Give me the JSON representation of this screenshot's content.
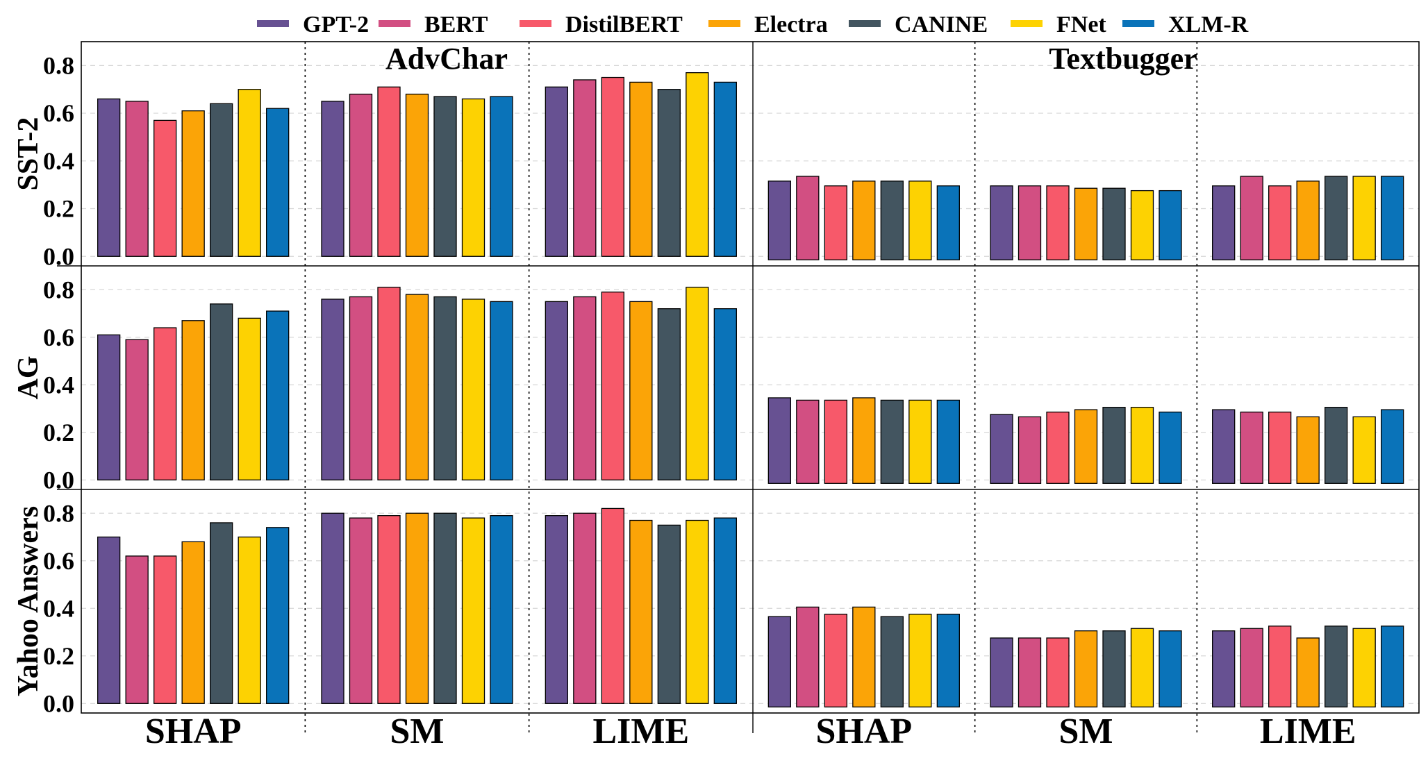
{
  "chart_data": {
    "type": "bar",
    "legend": [
      {
        "name": "GPT-2",
        "color": "#675192"
      },
      {
        "name": "BERT",
        "color": "#d24f82"
      },
      {
        "name": "DistilBERT",
        "color": "#f7596a"
      },
      {
        "name": "Electra",
        "color": "#fba407"
      },
      {
        "name": "CANINE",
        "color": "#435560"
      },
      {
        "name": "FNet",
        "color": "#fdd202"
      },
      {
        "name": "XLM-R",
        "color": "#0a73b9"
      }
    ],
    "attacks": [
      "AdvChar",
      "Textbugger"
    ],
    "methods": [
      "SHAP",
      "SM",
      "LIME"
    ],
    "datasets": [
      "SST-2",
      "AG",
      "Yahoo Answers"
    ],
    "ylim": [
      -0.04,
      0.9
    ],
    "yticks": [
      "0.0",
      "0.2",
      "0.4",
      "0.6",
      "0.8"
    ],
    "values": {
      "SST-2": {
        "AdvChar": {
          "SHAP": [
            0.66,
            0.65,
            0.57,
            0.61,
            0.64,
            0.7,
            0.62
          ],
          "SM": [
            0.65,
            0.68,
            0.71,
            0.68,
            0.67,
            0.66,
            0.67
          ],
          "LIME": [
            0.71,
            0.74,
            0.75,
            0.73,
            0.7,
            0.77,
            0.73
          ]
        },
        "Textbugger": {
          "SHAP": [
            0.33,
            0.35,
            0.31,
            0.33,
            0.33,
            0.33,
            0.31
          ],
          "SM": [
            0.31,
            0.31,
            0.31,
            0.3,
            0.3,
            0.29,
            0.29
          ],
          "LIME": [
            0.31,
            0.35,
            0.31,
            0.33,
            0.35,
            0.35,
            0.35
          ]
        }
      },
      "AG": {
        "AdvChar": {
          "SHAP": [
            0.61,
            0.59,
            0.64,
            0.67,
            0.74,
            0.68,
            0.71
          ],
          "SM": [
            0.76,
            0.77,
            0.81,
            0.78,
            0.77,
            0.76,
            0.75
          ],
          "LIME": [
            0.75,
            0.77,
            0.79,
            0.75,
            0.72,
            0.81,
            0.72
          ]
        },
        "Textbugger": {
          "SHAP": [
            0.36,
            0.35,
            0.35,
            0.36,
            0.35,
            0.35,
            0.35
          ],
          "SM": [
            0.29,
            0.28,
            0.3,
            0.31,
            0.32,
            0.32,
            0.3
          ],
          "LIME": [
            0.31,
            0.3,
            0.3,
            0.28,
            0.32,
            0.28,
            0.31
          ]
        }
      },
      "Yahoo Answers": {
        "AdvChar": {
          "SHAP": [
            0.7,
            0.62,
            0.62,
            0.68,
            0.76,
            0.7,
            0.74
          ],
          "SM": [
            0.8,
            0.78,
            0.79,
            0.8,
            0.8,
            0.78,
            0.79
          ],
          "LIME": [
            0.79,
            0.8,
            0.82,
            0.77,
            0.75,
            0.77,
            0.78
          ]
        },
        "Textbugger": {
          "SHAP": [
            0.38,
            0.42,
            0.39,
            0.42,
            0.38,
            0.39,
            0.39
          ],
          "SM": [
            0.29,
            0.29,
            0.29,
            0.32,
            0.32,
            0.33,
            0.32
          ],
          "LIME": [
            0.32,
            0.33,
            0.34,
            0.29,
            0.34,
            0.33,
            0.34
          ]
        }
      }
    }
  }
}
